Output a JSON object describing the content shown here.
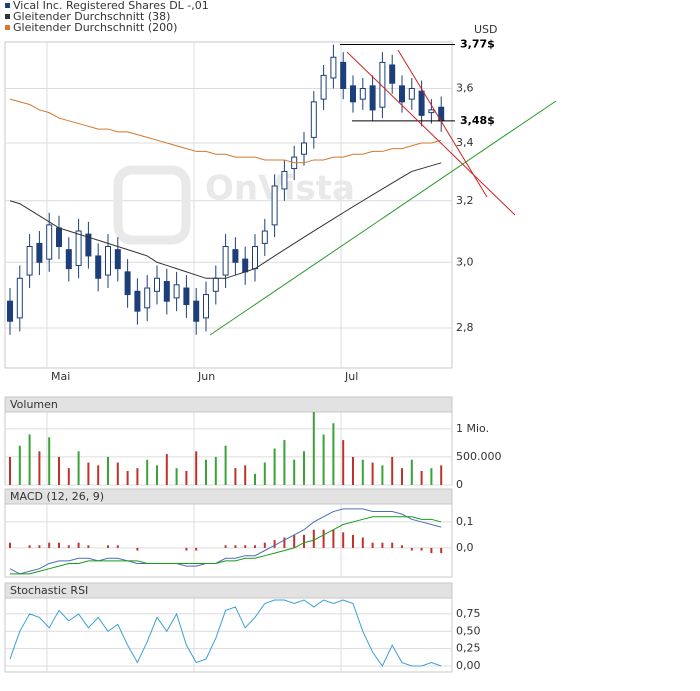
{
  "chart_data": [
    {
      "type": "candlestick",
      "y_axis_label": "USD",
      "watermark": "OnVista",
      "log_scale": true,
      "grid": true,
      "categories": [
        null,
        null,
        null,
        null,
        null,
        "Mai",
        null,
        null,
        null,
        null,
        null,
        null,
        null,
        null,
        null,
        null,
        null,
        null,
        null,
        null,
        "Jun",
        null,
        null,
        null,
        null,
        null,
        null,
        null,
        null,
        null,
        null,
        null,
        null,
        null,
        null,
        "Jul",
        null,
        null,
        null,
        null,
        null,
        null,
        null,
        null,
        null
      ],
      "series": [
        {
          "name": "Vical Inc. Registered Shares DL -,01",
          "color": "#1c3f7a",
          "open": [
            2.88,
            2.83,
            2.96,
            3.06,
            3.01,
            3.11,
            3.04,
            2.99,
            3.09,
            3.02,
            2.96,
            3.04,
            2.97,
            2.91,
            2.86,
            2.91,
            2.94,
            2.89,
            2.92,
            2.88,
            2.83,
            2.91,
            2.96,
            3.04,
            3.01,
            2.98,
            3.06,
            3.12,
            3.24,
            3.31,
            3.36,
            3.42,
            3.56,
            3.64,
            3.7,
            3.61,
            3.56,
            3.61,
            3.53,
            3.69,
            3.61,
            3.56,
            3.59,
            3.51,
            3.53
          ],
          "high": [
            2.92,
            2.99,
            3.09,
            3.1,
            3.16,
            3.15,
            3.08,
            3.14,
            3.13,
            3.06,
            3.09,
            3.08,
            3.01,
            2.95,
            2.96,
            2.99,
            2.98,
            2.97,
            2.96,
            2.92,
            2.94,
            2.99,
            3.09,
            3.08,
            3.05,
            3.09,
            3.14,
            3.29,
            3.34,
            3.39,
            3.44,
            3.59,
            3.69,
            3.77,
            3.74,
            3.65,
            3.64,
            3.65,
            3.74,
            3.73,
            3.65,
            3.64,
            3.63,
            3.56,
            3.57
          ],
          "low": [
            2.78,
            2.79,
            2.92,
            2.96,
            2.97,
            3.01,
            2.94,
            2.95,
            2.98,
            2.91,
            2.92,
            2.94,
            2.86,
            2.81,
            2.82,
            2.87,
            2.84,
            2.85,
            2.83,
            2.78,
            2.79,
            2.87,
            2.92,
            2.96,
            2.93,
            2.94,
            3.02,
            3.08,
            3.2,
            3.27,
            3.32,
            3.38,
            3.52,
            3.6,
            3.56,
            3.51,
            3.52,
            3.48,
            3.49,
            3.58,
            3.51,
            3.52,
            3.46,
            3.47,
            3.44
          ],
          "close": [
            2.82,
            2.95,
            3.05,
            3.0,
            3.12,
            3.05,
            2.98,
            3.1,
            3.02,
            2.95,
            3.05,
            2.98,
            2.9,
            2.85,
            2.92,
            2.95,
            2.88,
            2.93,
            2.87,
            2.82,
            2.9,
            2.95,
            3.05,
            3.0,
            2.97,
            3.05,
            3.1,
            3.25,
            3.3,
            3.35,
            3.4,
            3.55,
            3.65,
            3.72,
            3.6,
            3.55,
            3.6,
            3.52,
            3.7,
            3.62,
            3.55,
            3.6,
            3.5,
            3.52,
            3.48
          ]
        },
        {
          "name": "Gleitender Durchschnitt (38)",
          "color": "#333333",
          "values": [
            3.2,
            3.19,
            3.17,
            3.15,
            3.13,
            3.11,
            3.1,
            3.09,
            3.08,
            3.07,
            3.06,
            3.05,
            3.04,
            3.03,
            3.02,
            3.0,
            2.99,
            2.98,
            2.97,
            2.96,
            2.95,
            2.95,
            2.95,
            2.96,
            2.97,
            2.98,
            3.0,
            3.02,
            3.04,
            3.06,
            3.08,
            3.1,
            3.12,
            3.14,
            3.16,
            3.18,
            3.2,
            3.22,
            3.24,
            3.26,
            3.28,
            3.3,
            3.31,
            3.32,
            3.33
          ]
        },
        {
          "name": "Gleitender Durchschnitt (200)",
          "color": "#d2782f",
          "values": [
            3.56,
            3.55,
            3.54,
            3.52,
            3.51,
            3.49,
            3.48,
            3.47,
            3.46,
            3.45,
            3.45,
            3.44,
            3.44,
            3.43,
            3.42,
            3.41,
            3.4,
            3.39,
            3.38,
            3.37,
            3.37,
            3.36,
            3.36,
            3.35,
            3.35,
            3.35,
            3.34,
            3.34,
            3.34,
            3.33,
            3.33,
            3.34,
            3.34,
            3.35,
            3.35,
            3.36,
            3.36,
            3.37,
            3.37,
            3.38,
            3.38,
            3.39,
            3.4,
            3.4,
            3.41
          ]
        }
      ],
      "ylim": [
        2.685,
        3.78
      ],
      "yticks": [
        {
          "value": 2.8,
          "label": "2,8"
        },
        {
          "value": 3.0,
          "label": "3,0"
        },
        {
          "value": 3.2,
          "label": "3,2"
        },
        {
          "value": 3.4,
          "label": "3,4"
        },
        {
          "value": 3.6,
          "label": "3,6"
        }
      ],
      "annotations": [
        {
          "value": 3.77,
          "label": "3,77$"
        },
        {
          "value": 3.48,
          "label": "3,48$"
        }
      ]
    },
    {
      "type": "bar",
      "title": "Volumen",
      "up_color": "#3aa335",
      "down_color": "#c0312b",
      "values": [
        500000,
        700000,
        900000,
        600000,
        850000,
        500000,
        300000,
        600000,
        400000,
        350000,
        500000,
        400000,
        250000,
        300000,
        450000,
        350000,
        550000,
        300000,
        250000,
        600000,
        450000,
        500000,
        700000,
        300000,
        350000,
        200000,
        400000,
        650000,
        800000,
        450000,
        600000,
        1300000,
        900000,
        1100000,
        800000,
        500000,
        450000,
        400000,
        350000,
        500000,
        300000,
        450000,
        250000,
        300000,
        350000
      ],
      "ylim": [
        0,
        1300000
      ],
      "yticks": [
        0,
        {
          "value": 500000,
          "label": "500.000"
        },
        {
          "value": 1000000,
          "label": "1 Mio."
        }
      ]
    },
    {
      "type": "line",
      "title": "MACD (12, 26, 9)",
      "series": [
        {
          "color": "#4a6fb5",
          "values": [
            -0.08,
            -0.1,
            -0.09,
            -0.08,
            -0.06,
            -0.05,
            -0.05,
            -0.04,
            -0.04,
            -0.05,
            -0.04,
            -0.04,
            -0.05,
            -0.06,
            -0.06,
            -0.06,
            -0.06,
            -0.06,
            -0.07,
            -0.07,
            -0.06,
            -0.06,
            -0.04,
            -0.04,
            -0.03,
            -0.03,
            -0.01,
            0.01,
            0.03,
            0.05,
            0.07,
            0.1,
            0.12,
            0.14,
            0.15,
            0.15,
            0.15,
            0.14,
            0.14,
            0.14,
            0.13,
            0.11,
            0.1,
            0.09,
            0.08
          ]
        },
        {
          "color": "#1a9a1a",
          "values": [
            -0.1,
            -0.1,
            -0.1,
            -0.09,
            -0.08,
            -0.07,
            -0.06,
            -0.06,
            -0.05,
            -0.05,
            -0.05,
            -0.05,
            -0.05,
            -0.05,
            -0.06,
            -0.06,
            -0.06,
            -0.06,
            -0.06,
            -0.06,
            -0.06,
            -0.06,
            -0.05,
            -0.05,
            -0.04,
            -0.04,
            -0.03,
            -0.02,
            -0.01,
            0.0,
            0.02,
            0.03,
            0.05,
            0.07,
            0.09,
            0.1,
            0.11,
            0.12,
            0.12,
            0.12,
            0.12,
            0.12,
            0.11,
            0.11,
            0.1
          ]
        }
      ],
      "histogram": {
        "color": "#c0312b",
        "values": [
          0.02,
          0,
          0.01,
          0.01,
          0.02,
          0.02,
          0.01,
          0.02,
          0.01,
          0,
          0.01,
          0.01,
          0,
          -0.01,
          0,
          0,
          0,
          0,
          -0.01,
          -0.01,
          0,
          0,
          0.01,
          0.01,
          0.01,
          0.01,
          0.02,
          0.03,
          0.04,
          0.05,
          0.05,
          0.07,
          0.07,
          0.07,
          0.06,
          0.05,
          0.04,
          0.02,
          0.02,
          0.02,
          0.01,
          -0.01,
          -0.01,
          -0.02,
          -0.02
        ]
      },
      "ylim": [
        -0.112,
        0.169
      ],
      "yticks": [
        {
          "value": 0,
          "label": "0,0"
        },
        {
          "value": 0.1,
          "label": "0,1"
        }
      ]
    },
    {
      "type": "line",
      "title": "Stochastic RSI",
      "series": [
        {
          "color": "#3aa0d8",
          "values": [
            0.1,
            0.5,
            0.75,
            0.7,
            0.55,
            0.8,
            0.65,
            0.75,
            0.55,
            0.7,
            0.5,
            0.6,
            0.3,
            0.05,
            0.35,
            0.7,
            0.5,
            0.75,
            0.3,
            0.05,
            0.1,
            0.4,
            0.8,
            0.85,
            0.55,
            0.7,
            0.9,
            0.95,
            0.95,
            0.9,
            0.95,
            0.85,
            0.95,
            0.9,
            0.95,
            0.9,
            0.5,
            0.2,
            0.0,
            0.3,
            0.05,
            0.0,
            0.0,
            0.05,
            0.0
          ]
        }
      ],
      "ylim": [
        -0.086,
        0.979
      ],
      "yticks": [
        {
          "value": 0,
          "label": "0,00"
        },
        {
          "value": 0.25,
          "label": "0,25"
        },
        {
          "value": 0.5,
          "label": "0,50"
        },
        {
          "value": 0.75,
          "label": "0,75"
        }
      ]
    }
  ]
}
